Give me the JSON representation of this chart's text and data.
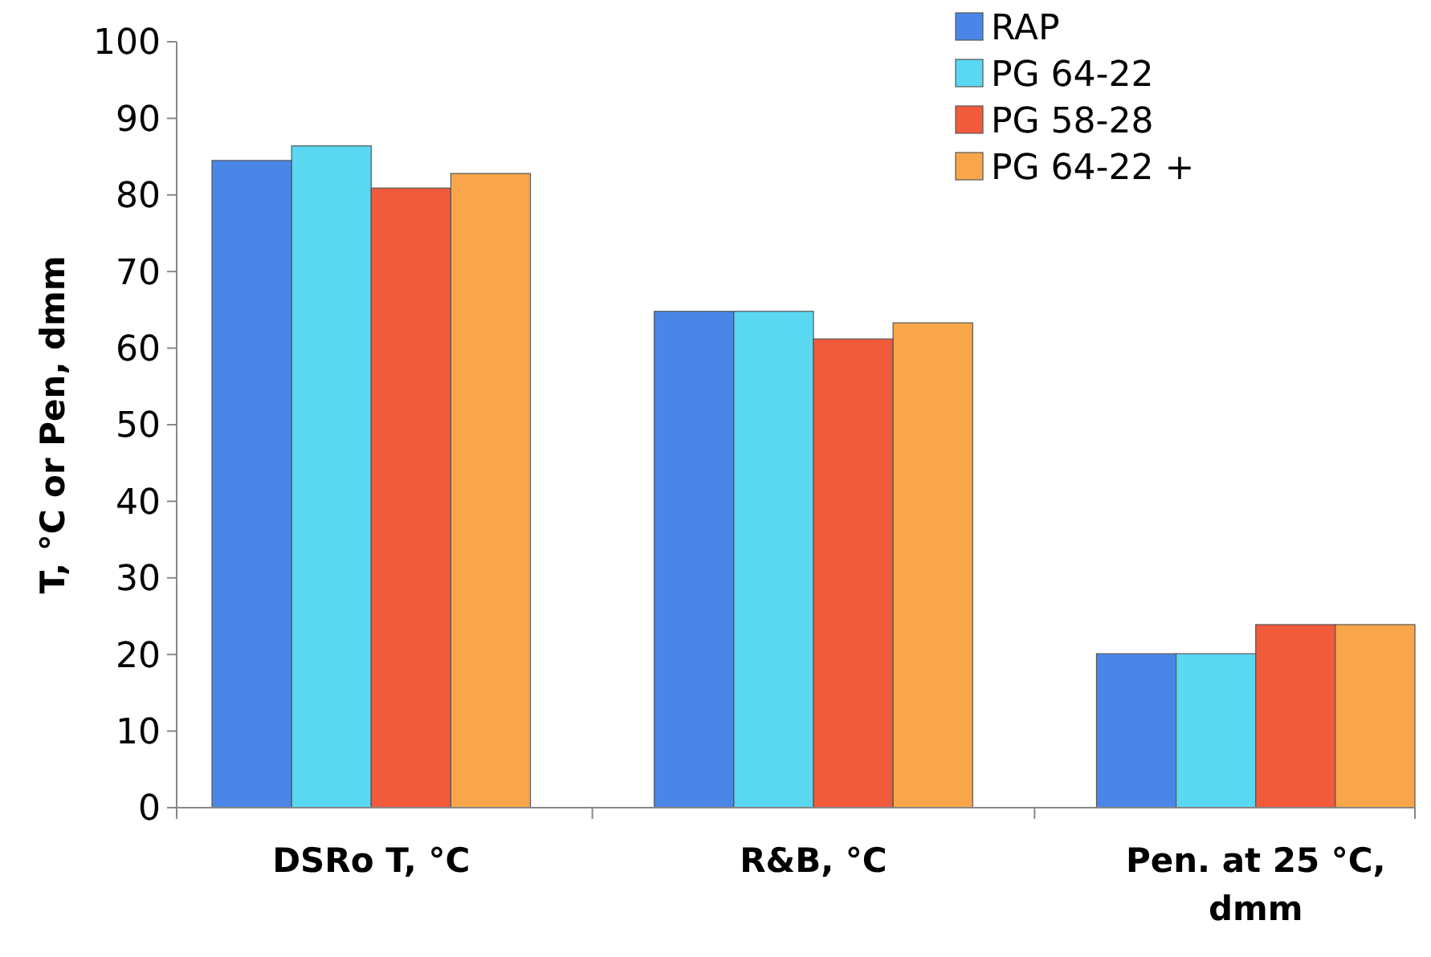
{
  "chart_data": {
    "type": "bar",
    "ylabel": "T, °C or Pen, dmm",
    "categories": [
      "DSRo T, °C",
      "R&B, °C",
      "Pen. at 25 °C, dmm"
    ],
    "series": [
      {
        "name": "RAP",
        "color": "#4a86e8",
        "values": [
          84.5,
          64.8,
          20.1
        ]
      },
      {
        "name": "PG 64-22",
        "color": "#5ad8f2",
        "values": [
          86.4,
          64.8,
          20.1
        ]
      },
      {
        "name": "PG 58-28",
        "color": "#f25a3c",
        "values": [
          80.9,
          61.2,
          23.9
        ]
      },
      {
        "name": "PG 64-22 +",
        "color": "#f9a64a",
        "values": [
          82.8,
          63.3,
          23.9
        ]
      }
    ],
    "ylim": [
      0,
      100
    ],
    "yticks": [
      0,
      10,
      20,
      30,
      40,
      50,
      60,
      70,
      80,
      90,
      100
    ],
    "grid": false,
    "legend": "top right"
  }
}
